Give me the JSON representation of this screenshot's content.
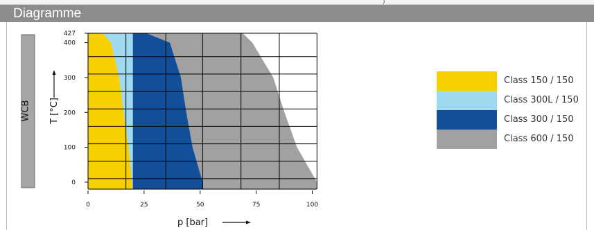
{
  "top_mark": ")",
  "header": {
    "title": "Diagramme"
  },
  "chart_data": {
    "type": "area",
    "material_label": "WCB",
    "xlabel": "p [bar]",
    "ylabel": "T [°C]",
    "xlim": [
      0,
      102
    ],
    "ylim": [
      -20,
      427
    ],
    "x_ticks": [
      0,
      25,
      50,
      75,
      100
    ],
    "y_ticks": [
      0,
      100,
      200,
      300,
      400,
      427
    ],
    "grid": true,
    "legend_position": "right",
    "series": [
      {
        "name": "Class 150 / 150",
        "color": "#f8d000",
        "boundary": [
          [
            19.6,
            -20
          ],
          [
            19.6,
            0
          ],
          [
            18,
            100
          ],
          [
            15.8,
            200
          ],
          [
            13.8,
            300
          ],
          [
            10.2,
            400
          ],
          [
            6.5,
            427
          ]
        ]
      },
      {
        "name": "Class 300L / 150",
        "color": "#9fdaf0",
        "boundary": [
          [
            20,
            -20
          ],
          [
            20,
            0
          ],
          [
            20,
            100
          ],
          [
            20,
            200
          ],
          [
            20,
            300
          ],
          [
            20,
            400
          ],
          [
            20,
            427
          ]
        ]
      },
      {
        "name": "Class 300 / 150",
        "color": "#124f9a",
        "boundary": [
          [
            51.1,
            -20
          ],
          [
            51.1,
            0
          ],
          [
            46.6,
            100
          ],
          [
            43.8,
            200
          ],
          [
            41.4,
            300
          ],
          [
            36.5,
            400
          ],
          [
            26,
            427
          ]
        ]
      },
      {
        "name": "Class 600 / 150",
        "color": "#a1a1a1",
        "boundary": [
          [
            102.1,
            -20
          ],
          [
            102.1,
            0
          ],
          [
            93.2,
            100
          ],
          [
            87.6,
            200
          ],
          [
            82.6,
            300
          ],
          [
            73.3,
            400
          ],
          [
            69,
            427
          ]
        ]
      }
    ]
  }
}
